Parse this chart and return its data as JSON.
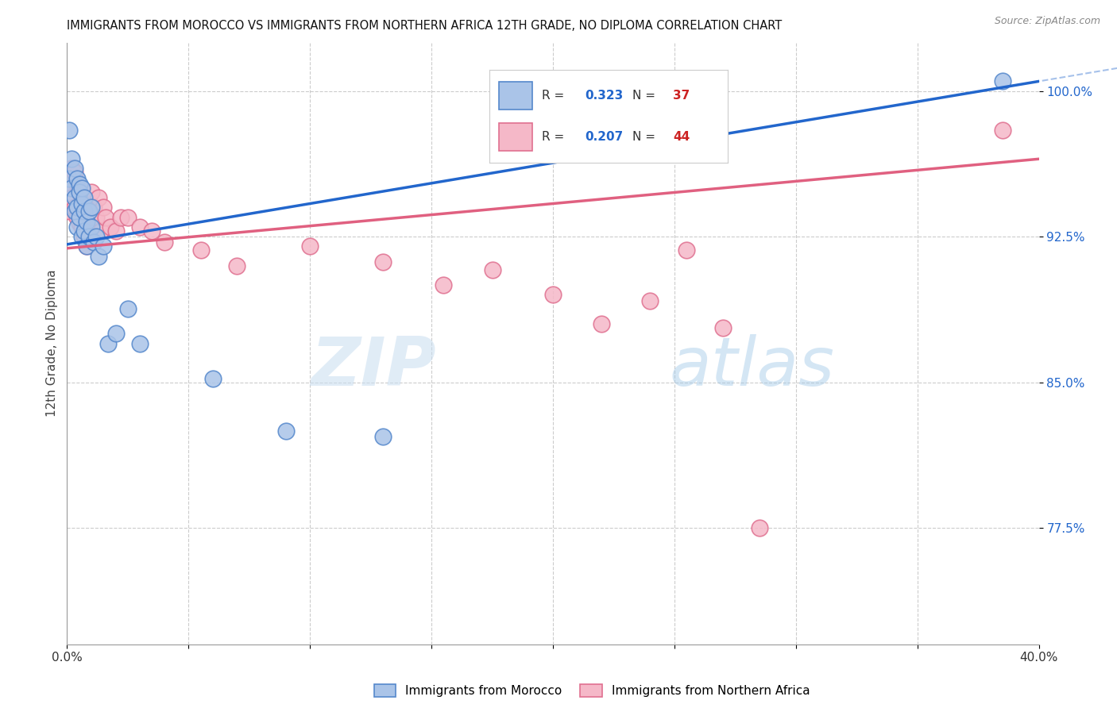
{
  "title": "IMMIGRANTS FROM MOROCCO VS IMMIGRANTS FROM NORTHERN AFRICA 12TH GRADE, NO DIPLOMA CORRELATION CHART",
  "source": "Source: ZipAtlas.com",
  "ylabel": "12th Grade, No Diploma",
  "xlim": [
    0.0,
    0.4
  ],
  "ylim": [
    0.715,
    1.025
  ],
  "ytick_positions": [
    0.775,
    0.85,
    0.925,
    1.0
  ],
  "ytick_labels": [
    "77.5%",
    "85.0%",
    "92.5%",
    "100.0%"
  ],
  "blue_color": "#aac4e8",
  "blue_edge_color": "#5588cc",
  "pink_color": "#f5b8c8",
  "pink_edge_color": "#e07090",
  "blue_line_color": "#2266cc",
  "pink_line_color": "#e06080",
  "legend_R1": "0.323",
  "legend_N1": "37",
  "legend_R2": "0.207",
  "legend_N2": "44",
  "label1": "Immigrants from Morocco",
  "label2": "Immigrants from Northern Africa",
  "watermark_zip": "ZIP",
  "watermark_atlas": "atlas",
  "blue_x": [
    0.001,
    0.001,
    0.002,
    0.002,
    0.003,
    0.003,
    0.003,
    0.004,
    0.004,
    0.004,
    0.005,
    0.005,
    0.005,
    0.006,
    0.006,
    0.006,
    0.007,
    0.007,
    0.007,
    0.008,
    0.008,
    0.009,
    0.009,
    0.01,
    0.01,
    0.011,
    0.012,
    0.013,
    0.015,
    0.017,
    0.02,
    0.025,
    0.03,
    0.06,
    0.09,
    0.13,
    0.385
  ],
  "blue_y": [
    0.98,
    0.955,
    0.965,
    0.95,
    0.96,
    0.945,
    0.938,
    0.955,
    0.94,
    0.93,
    0.952,
    0.948,
    0.935,
    0.942,
    0.925,
    0.95,
    0.938,
    0.928,
    0.945,
    0.933,
    0.92,
    0.938,
    0.925,
    0.93,
    0.94,
    0.922,
    0.925,
    0.915,
    0.92,
    0.87,
    0.875,
    0.888,
    0.87,
    0.852,
    0.825,
    0.822,
    1.005
  ],
  "pink_x": [
    0.001,
    0.001,
    0.002,
    0.002,
    0.003,
    0.003,
    0.004,
    0.004,
    0.005,
    0.005,
    0.006,
    0.006,
    0.007,
    0.007,
    0.008,
    0.008,
    0.009,
    0.01,
    0.011,
    0.012,
    0.013,
    0.014,
    0.015,
    0.016,
    0.018,
    0.02,
    0.022,
    0.025,
    0.03,
    0.035,
    0.04,
    0.055,
    0.07,
    0.1,
    0.13,
    0.155,
    0.175,
    0.2,
    0.22,
    0.24,
    0.255,
    0.27,
    0.285,
    0.385
  ],
  "pink_y": [
    0.95,
    0.938,
    0.96,
    0.945,
    0.958,
    0.94,
    0.952,
    0.935,
    0.948,
    0.932,
    0.945,
    0.93,
    0.942,
    0.925,
    0.94,
    0.92,
    0.935,
    0.948,
    0.94,
    0.935,
    0.945,
    0.928,
    0.94,
    0.935,
    0.93,
    0.928,
    0.935,
    0.935,
    0.93,
    0.928,
    0.922,
    0.918,
    0.91,
    0.92,
    0.912,
    0.9,
    0.908,
    0.895,
    0.88,
    0.892,
    0.918,
    0.878,
    0.775,
    0.98
  ]
}
